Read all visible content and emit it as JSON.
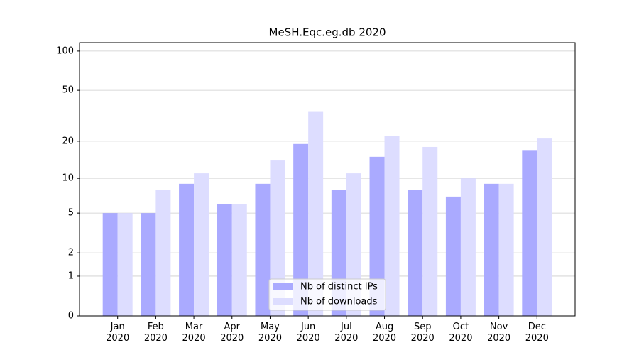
{
  "chart_data": {
    "type": "bar",
    "title": "MeSH.Eqc.eg.db 2020",
    "categories": [
      "Jan\n2020",
      "Feb\n2020",
      "Mar\n2020",
      "Apr\n2020",
      "May\n2020",
      "Jun\n2020",
      "Jul\n2020",
      "Aug\n2020",
      "Sep\n2020",
      "Oct\n2020",
      "Nov\n2020",
      "Dec\n2020"
    ],
    "series": [
      {
        "name": "Nb of distinct IPs",
        "color": "#aaaaff",
        "values": [
          5,
          5,
          9,
          6,
          9,
          19,
          8,
          15,
          8,
          7,
          9,
          17
        ]
      },
      {
        "name": "Nb of downloads",
        "color": "#ddddff",
        "values": [
          5,
          8,
          11,
          6,
          14,
          34,
          11,
          22,
          18,
          10,
          9,
          21
        ]
      }
    ],
    "yscale": "log1p",
    "ylim": [
      0,
      116
    ],
    "yticks": [
      0,
      1,
      2,
      5,
      10,
      20,
      50,
      100
    ],
    "grid": true,
    "legend": "lower center"
  }
}
